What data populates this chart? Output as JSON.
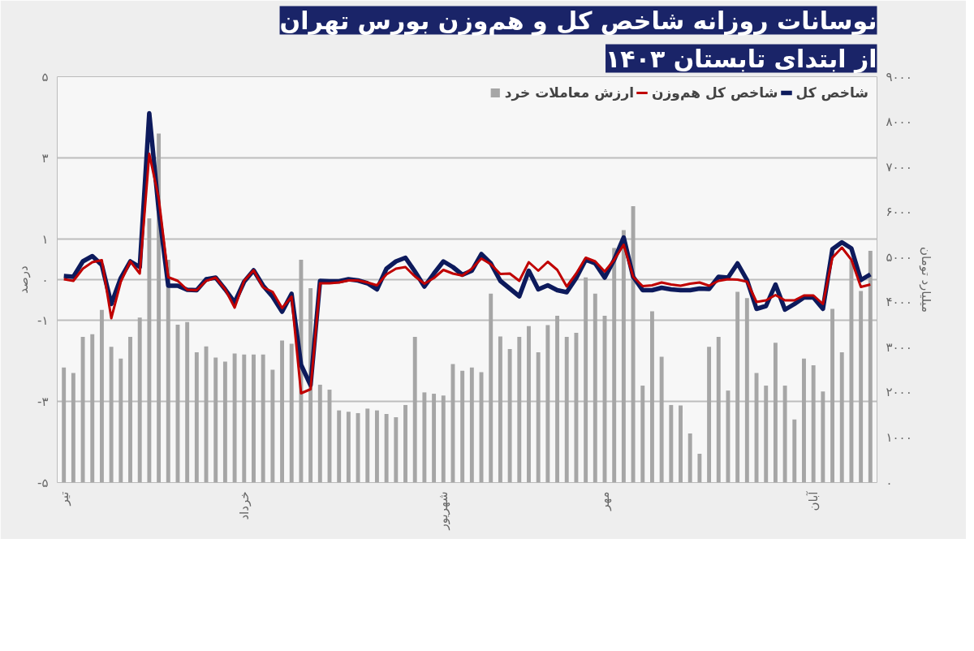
{
  "chart_data": {
    "type": "line",
    "title": "نوسانات روزانه شاخص کل و هم‌وزن بورس تهران",
    "subtitle": "از ابتدای تابستان ۱۴۰۳",
    "ylabel": "درصد",
    "y2label": "میلیارد تومان",
    "categories": [
      "تیر",
      null,
      null,
      null,
      null,
      null,
      null,
      null,
      null,
      null,
      null,
      null,
      null,
      null,
      null,
      null,
      null,
      null,
      null,
      "خرداد",
      null,
      null,
      null,
      null,
      null,
      null,
      null,
      null,
      null,
      null,
      null,
      null,
      null,
      null,
      null,
      null,
      null,
      null,
      null,
      null,
      "شهریور",
      null,
      null,
      null,
      null,
      null,
      null,
      null,
      null,
      null,
      null,
      null,
      null,
      null,
      null,
      null,
      null,
      "مهر",
      null,
      null,
      null,
      null,
      null,
      null,
      null,
      null,
      null,
      null,
      null,
      null,
      null,
      null,
      null,
      null,
      null,
      null,
      null,
      null,
      null,
      "آبان",
      null,
      null,
      null,
      null,
      null,
      null
    ],
    "series": [
      {
        "name": "شاخص کل",
        "color": "#0d1a5c",
        "values": [
          0.09,
          0.07,
          0.45,
          0.58,
          0.36,
          -0.6,
          0.04,
          0.45,
          0.31,
          4.1,
          1.7,
          -0.15,
          -0.15,
          -0.25,
          -0.26,
          0.01,
          0.05,
          -0.24,
          -0.56,
          -0.05,
          0.23,
          -0.15,
          -0.42,
          -0.79,
          -0.35,
          -2.1,
          -2.6,
          -0.03,
          -0.04,
          -0.04,
          0.01,
          -0.02,
          -0.09,
          -0.24,
          0.27,
          0.45,
          0.54,
          0.2,
          -0.17,
          0.15,
          0.45,
          0.31,
          0.12,
          0.22,
          0.63,
          0.4,
          -0.03,
          -0.22,
          -0.41,
          0.22,
          -0.24,
          -0.14,
          -0.26,
          -0.31,
          0.04,
          0.49,
          0.4,
          0.05,
          0.49,
          1.04,
          0.07,
          -0.26,
          -0.26,
          -0.2,
          -0.24,
          -0.26,
          -0.26,
          -0.22,
          -0.23,
          0.07,
          0.05,
          0.4,
          -0.01,
          -0.72,
          -0.65,
          -0.12,
          -0.74,
          -0.6,
          -0.44,
          -0.44,
          -0.72,
          0.75,
          0.92,
          0.77,
          -0.01,
          0.13
        ]
      },
      {
        "name": "شاخص کل هم‌وزن",
        "color": "#c00000",
        "values": [
          0.01,
          -0.03,
          0.27,
          0.43,
          0.48,
          -0.95,
          -0.05,
          0.45,
          0.15,
          3.1,
          2.0,
          0.06,
          -0.03,
          -0.25,
          -0.26,
          -0.03,
          0.05,
          -0.24,
          -0.69,
          -0.03,
          0.23,
          -0.19,
          -0.3,
          -0.7,
          -0.42,
          -2.8,
          -2.7,
          -0.09,
          -0.09,
          -0.07,
          -0.02,
          -0.02,
          -0.07,
          -0.14,
          0.13,
          0.27,
          0.31,
          0.08,
          -0.1,
          0.04,
          0.24,
          0.15,
          0.1,
          0.27,
          0.52,
          0.38,
          0.14,
          0.15,
          -0.03,
          0.43,
          0.22,
          0.44,
          0.24,
          -0.17,
          0.15,
          0.54,
          0.45,
          0.2,
          0.49,
          0.86,
          0.07,
          -0.16,
          -0.14,
          -0.07,
          -0.12,
          -0.15,
          -0.1,
          -0.07,
          -0.15,
          -0.03,
          0.01,
          0.0,
          -0.05,
          -0.55,
          -0.51,
          -0.38,
          -0.51,
          -0.51,
          -0.39,
          -0.39,
          -0.6,
          0.54,
          0.79,
          0.49,
          -0.18,
          -0.12
        ]
      },
      {
        "name": "ارزش معاملات خرد",
        "color": "#a6a6a6",
        "type": "bar",
        "axis": "y2",
        "values": [
          2550,
          2430,
          3230,
          3290,
          3830,
          3010,
          2750,
          3230,
          3660,
          5860,
          7740,
          4940,
          3500,
          3560,
          2890,
          3020,
          2770,
          2680,
          2860,
          2840,
          2840,
          2840,
          2500,
          3150,
          3080,
          4940,
          4310,
          2170,
          2060,
          1600,
          1570,
          1540,
          1640,
          1600,
          1520,
          1450,
          1720,
          3230,
          2000,
          1970,
          1930,
          2630,
          2480,
          2550,
          2450,
          4190,
          3240,
          2960,
          3230,
          3470,
          2890,
          3490,
          3700,
          3230,
          3320,
          4550,
          4190,
          3700,
          5200,
          5600,
          6130,
          2150,
          3800,
          2790,
          1720,
          1710,
          1090,
          640,
          3010,
          3230,
          2040,
          4230,
          4090,
          2430,
          2150,
          3100,
          2150,
          1400,
          2750,
          2600,
          2020,
          3850,
          2890,
          4930,
          4250,
          5140
        ]
      }
    ],
    "ylim": [
      -5,
      5
    ],
    "yticks": [
      {
        "value": 5,
        "label": "۵"
      },
      {
        "value": 3,
        "label": "۳"
      },
      {
        "value": 1,
        "label": "۱"
      },
      {
        "value": 0,
        "label": "۰"
      },
      {
        "value": -1,
        "label": "-۱"
      },
      {
        "value": -3,
        "label": "-۳"
      },
      {
        "value": -5,
        "label": "-۵"
      }
    ],
    "y2lim": [
      0,
      9000
    ],
    "y2ticks": [
      {
        "value": 0,
        "label": "۰"
      },
      {
        "value": 1000,
        "label": "۱۰۰۰"
      },
      {
        "value": 2000,
        "label": "۲۰۰۰"
      },
      {
        "value": 3000,
        "label": "۳۰۰۰"
      },
      {
        "value": 4000,
        "label": "۴۰۰۰"
      },
      {
        "value": 5000,
        "label": "۵۰۰۰"
      },
      {
        "value": 6000,
        "label": "۶۰۰۰"
      },
      {
        "value": 7000,
        "label": "۷۰۰۰"
      },
      {
        "value": 8000,
        "label": "۸۰۰۰"
      },
      {
        "value": 9000,
        "label": "۹۰۰۰"
      }
    ],
    "grid": "y",
    "legend": "top right",
    "marker": "none",
    "line_style": "solid"
  }
}
